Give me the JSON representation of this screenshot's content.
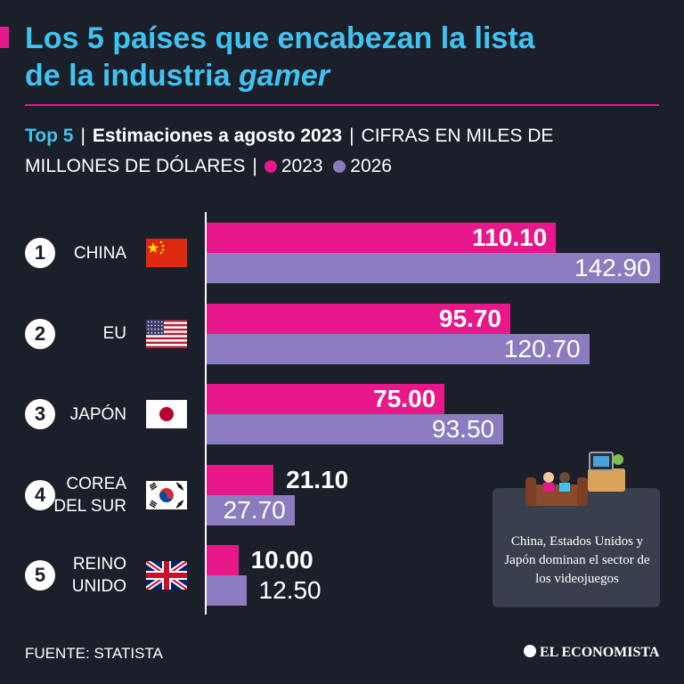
{
  "title": {
    "line1": "Los 5 países que encabezan la lista",
    "line2_plain": "de la industria ",
    "line2_italic": "gamer"
  },
  "subtitle": {
    "top": "Top 5",
    "estimate": "Estimaciones a agosto 2023",
    "units_line1": "CIFRAS EN MILES DE",
    "units_line2": "MILLONES DE DÓLARES",
    "legend_2023": "2023",
    "legend_2026": "2026"
  },
  "chart_data": {
    "type": "bar",
    "orientation": "horizontal",
    "title": "Los 5 países que encabezan la lista de la industria gamer",
    "subtitle": "Top 5 | Estimaciones a agosto 2023 | CIFRAS EN MILES DE MILLONES DE DÓLARES",
    "categories": [
      "CHINA",
      "EU",
      "JAPÓN",
      "COREA\nDEL SUR",
      "REINO\nUNIDO"
    ],
    "ranks": [
      "1",
      "2",
      "3",
      "4",
      "5"
    ],
    "series": [
      {
        "name": "2023",
        "values": [
          110.1,
          95.7,
          75.0,
          21.1,
          10.0
        ],
        "labels": [
          "110.10",
          "95.70",
          "75.00",
          "21.10",
          "10.00"
        ]
      },
      {
        "name": "2026",
        "values": [
          142.9,
          120.7,
          93.5,
          27.7,
          12.5
        ],
        "labels": [
          "142.90",
          "120.70",
          "93.50",
          "27.70",
          "12.50"
        ]
      }
    ],
    "xlim": [
      0,
      142.9
    ],
    "legend": "top-left",
    "grid": false
  },
  "colors": {
    "series_2023": "#e8178a",
    "series_2026": "#8b7cbf",
    "accent": "#3fc3f0",
    "background": "#1b1f2a"
  },
  "flags": [
    "china-flag-icon",
    "usa-flag-icon",
    "japan-flag-icon",
    "south-korea-flag-icon",
    "uk-flag-icon"
  ],
  "callout": {
    "text": "China, Estados Unidos y Japón dominan el sector de los videojuegos",
    "icon": "living-room-gaming-icon"
  },
  "footer": {
    "source": "FUENTE: STATISTA",
    "brand": "EL ECONOMISTA"
  }
}
